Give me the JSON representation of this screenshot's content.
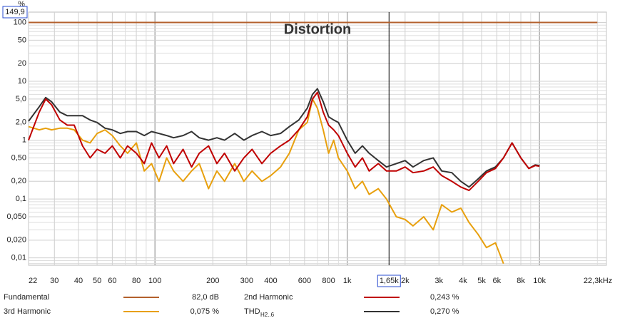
{
  "chart_data": {
    "type": "line",
    "title": "Distortion",
    "y_unit": "%",
    "log_x": true,
    "log_y": true,
    "grid": true,
    "xlim": [
      22,
      22300
    ],
    "ylim": [
      0.0075,
      149.9
    ],
    "xticks": [
      22,
      30,
      40,
      50,
      60,
      80,
      100,
      200,
      300,
      400,
      600,
      800,
      {
        "value": 1000,
        "label": "1k"
      },
      {
        "value": 2000,
        "label": "2k"
      },
      {
        "value": 3000,
        "label": "3k"
      },
      {
        "value": 4000,
        "label": "4k"
      },
      {
        "value": 5000,
        "label": "5k"
      },
      {
        "value": 6000,
        "label": "6k"
      },
      {
        "value": 8000,
        "label": "8k"
      },
      {
        "value": 10000,
        "label": "10k"
      },
      {
        "value": 22300,
        "label": "22,3kHz"
      }
    ],
    "yticks": [
      {
        "value": 149.9,
        "label": "149,9"
      },
      100,
      50,
      20,
      10,
      {
        "value": 5,
        "label": "5,0"
      },
      {
        "value": 2,
        "label": "2,0"
      },
      1,
      {
        "value": 0.5,
        "label": "0,50"
      },
      {
        "value": 0.2,
        "label": "0,20"
      },
      {
        "value": 0.1,
        "label": "0,1"
      },
      {
        "value": 0.05,
        "label": "0,050"
      },
      {
        "value": 0.02,
        "label": "0,020"
      },
      {
        "value": 0.01,
        "label": "0,01"
      }
    ],
    "cursor": {
      "value": 1650,
      "label": "1,65k"
    },
    "x": [
      22,
      25,
      27,
      29,
      32,
      35,
      38,
      42,
      46,
      50,
      55,
      60,
      66,
      72,
      80,
      88,
      96,
      105,
      115,
      125,
      140,
      155,
      170,
      190,
      210,
      230,
      260,
      290,
      320,
      360,
      400,
      450,
      500,
      560,
      620,
      660,
      700,
      750,
      800,
      850,
      900,
      1000,
      1100,
      1200,
      1300,
      1450,
      1600,
      1800,
      2000,
      2200,
      2500,
      2800,
      3100,
      3500,
      3900,
      4300,
      4800,
      5300,
      5900,
      6500,
      7200,
      8000,
      8800,
      9500,
      10000
    ],
    "series": [
      {
        "name": "Fundamental",
        "color": "#b3602c",
        "legend_value": "82,0 dB",
        "x": [
          22,
          20000
        ],
        "values": [
          100,
          100
        ]
      },
      {
        "name": "2nd Harmonic",
        "color": "#c00000",
        "legend_value": "0,243 %",
        "values": [
          1.0,
          3,
          5,
          4,
          2.2,
          1.8,
          1.8,
          0.8,
          0.5,
          0.7,
          0.6,
          0.8,
          0.5,
          0.8,
          0.6,
          0.4,
          0.9,
          0.5,
          0.8,
          0.4,
          0.7,
          0.35,
          0.6,
          0.8,
          0.4,
          0.6,
          0.3,
          0.5,
          0.7,
          0.4,
          0.6,
          0.8,
          1.0,
          1.5,
          2.5,
          5.0,
          6.5,
          3,
          1.8,
          1.5,
          1.2,
          0.6,
          0.35,
          0.5,
          0.3,
          0.4,
          0.3,
          0.3,
          0.35,
          0.28,
          0.3,
          0.35,
          0.25,
          0.2,
          0.16,
          0.14,
          0.2,
          0.28,
          0.33,
          0.5,
          0.9,
          0.5,
          0.33,
          0.37,
          0.36
        ]
      },
      {
        "name": "3rd Harmonic",
        "color": "#e8a00e",
        "legend_value": "0,075 %",
        "values": [
          1.7,
          1.5,
          1.6,
          1.5,
          1.6,
          1.6,
          1.5,
          1.0,
          0.9,
          1.3,
          1.5,
          1.2,
          0.8,
          0.6,
          0.9,
          0.3,
          0.4,
          0.2,
          0.5,
          0.3,
          0.2,
          0.3,
          0.4,
          0.15,
          0.3,
          0.2,
          0.4,
          0.2,
          0.3,
          0.2,
          0.25,
          0.35,
          0.6,
          1.5,
          2.0,
          5.0,
          3.5,
          1.5,
          0.6,
          1.0,
          0.5,
          0.3,
          0.15,
          0.2,
          0.12,
          0.15,
          0.1,
          0.05,
          0.045,
          0.035,
          0.05,
          0.03,
          0.08,
          0.06,
          0.07,
          0.04,
          0.025,
          0.015,
          0.018,
          0.008,
          null,
          null,
          null,
          null,
          null
        ]
      },
      {
        "name": "THD",
        "name_subscript": "H2..6",
        "color": "#333333",
        "legend_value": "0,270 %",
        "values": [
          2.1,
          3.7,
          5.3,
          4.5,
          3,
          2.6,
          2.6,
          2.6,
          2.2,
          2.0,
          1.6,
          1.5,
          1.3,
          1.4,
          1.4,
          1.2,
          1.4,
          1.3,
          1.2,
          1.1,
          1.2,
          1.4,
          1.1,
          1.0,
          1.1,
          1.0,
          1.3,
          1.0,
          1.2,
          1.4,
          1.2,
          1.3,
          1.7,
          2.2,
          3.5,
          6.0,
          7.5,
          4.5,
          2.5,
          2.2,
          2.0,
          1.0,
          0.6,
          0.8,
          0.6,
          0.45,
          0.35,
          0.4,
          0.45,
          0.35,
          0.45,
          0.5,
          0.3,
          0.28,
          0.2,
          0.16,
          0.22,
          0.3,
          0.35,
          0.5,
          0.9,
          0.5,
          0.33,
          0.38,
          0.37
        ]
      }
    ]
  }
}
